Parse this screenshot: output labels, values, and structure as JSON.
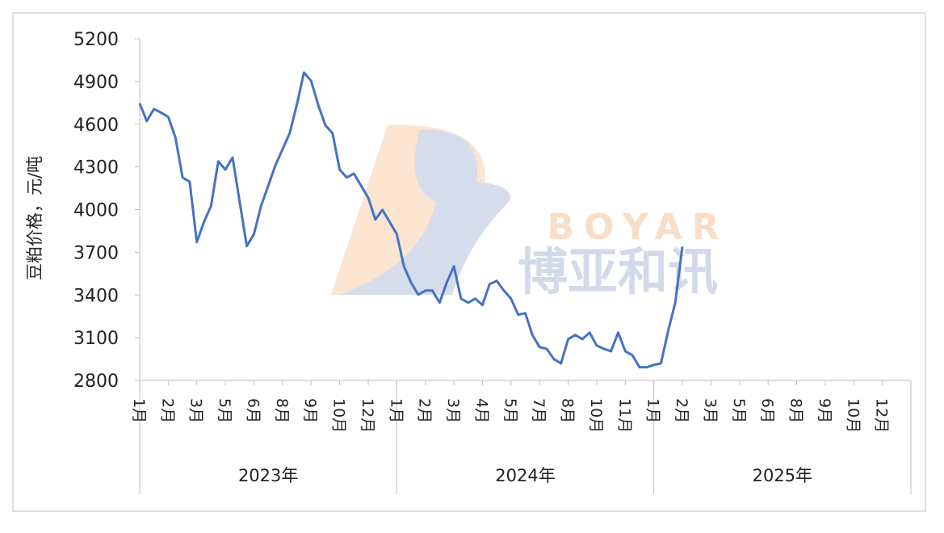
{
  "chart_data": {
    "type": "line",
    "y_label": "豆粕价格，元/吨",
    "watermark": {
      "latin": "BOYAR",
      "chinese": "博亚和讯"
    },
    "year_groups": [
      "2023年",
      "2024年",
      "2025年"
    ],
    "categories": [
      "1月",
      null,
      null,
      null,
      "2月",
      null,
      null,
      null,
      "3月",
      null,
      null,
      null,
      "5月",
      null,
      null,
      null,
      "6月",
      null,
      null,
      null,
      "8月",
      null,
      null,
      null,
      "9月",
      null,
      null,
      null,
      "10月",
      null,
      null,
      null,
      "12月",
      null,
      null,
      null,
      "1月",
      null,
      null,
      null,
      "2月",
      null,
      null,
      null,
      "3月",
      null,
      null,
      null,
      "4月",
      null,
      null,
      null,
      "5月",
      null,
      null,
      null,
      "7月",
      null,
      null,
      null,
      "8月",
      null,
      null,
      null,
      "10月",
      null,
      null,
      null,
      "11月",
      null,
      null,
      null,
      "1月",
      null,
      null,
      null,
      "2月",
      null,
      null,
      null,
      "3月",
      null,
      null,
      null,
      "5月",
      null,
      null,
      null,
      "6月",
      null,
      null,
      null,
      "8月",
      null,
      null,
      null,
      "9月",
      null,
      null,
      null,
      "10月",
      null,
      null,
      null,
      "12月",
      null,
      null,
      null
    ],
    "series": [
      {
        "color": "#4472c4",
        "values": [
          4746,
          4622,
          4707,
          4680,
          4650,
          4508,
          4225,
          4196,
          3771,
          3913,
          4026,
          4338,
          4281,
          4366,
          4054,
          3743,
          3828,
          4026,
          4168,
          4310,
          4423,
          4536,
          4735,
          4962,
          4905,
          4735,
          4593,
          4536,
          4281,
          4225,
          4253,
          4168,
          4083,
          3930,
          3998,
          3913,
          3828,
          3601,
          3487,
          3402,
          3431,
          3431,
          3346,
          3487,
          3601,
          3374,
          3346,
          3374,
          3329,
          3476,
          3499,
          3431,
          3374,
          3261,
          3272,
          3119,
          3034,
          3022,
          2949,
          2920,
          3090,
          3119,
          3090,
          3136,
          3045,
          3022,
          3005,
          3136,
          3005,
          2977,
          2892,
          2892,
          2909,
          2920,
          3147,
          3346,
          3740,
          null,
          null,
          null,
          null,
          null,
          null,
          null,
          null,
          null,
          null,
          null,
          null,
          null,
          null,
          null,
          null,
          null,
          null,
          null,
          null,
          null,
          null,
          null,
          null,
          null,
          null,
          null,
          null,
          null,
          null,
          null
        ]
      }
    ],
    "ylim": [
      2800,
      5200
    ],
    "yticks": [
      2800,
      3100,
      3400,
      3700,
      4000,
      4300,
      4600,
      4900,
      5200
    ]
  }
}
